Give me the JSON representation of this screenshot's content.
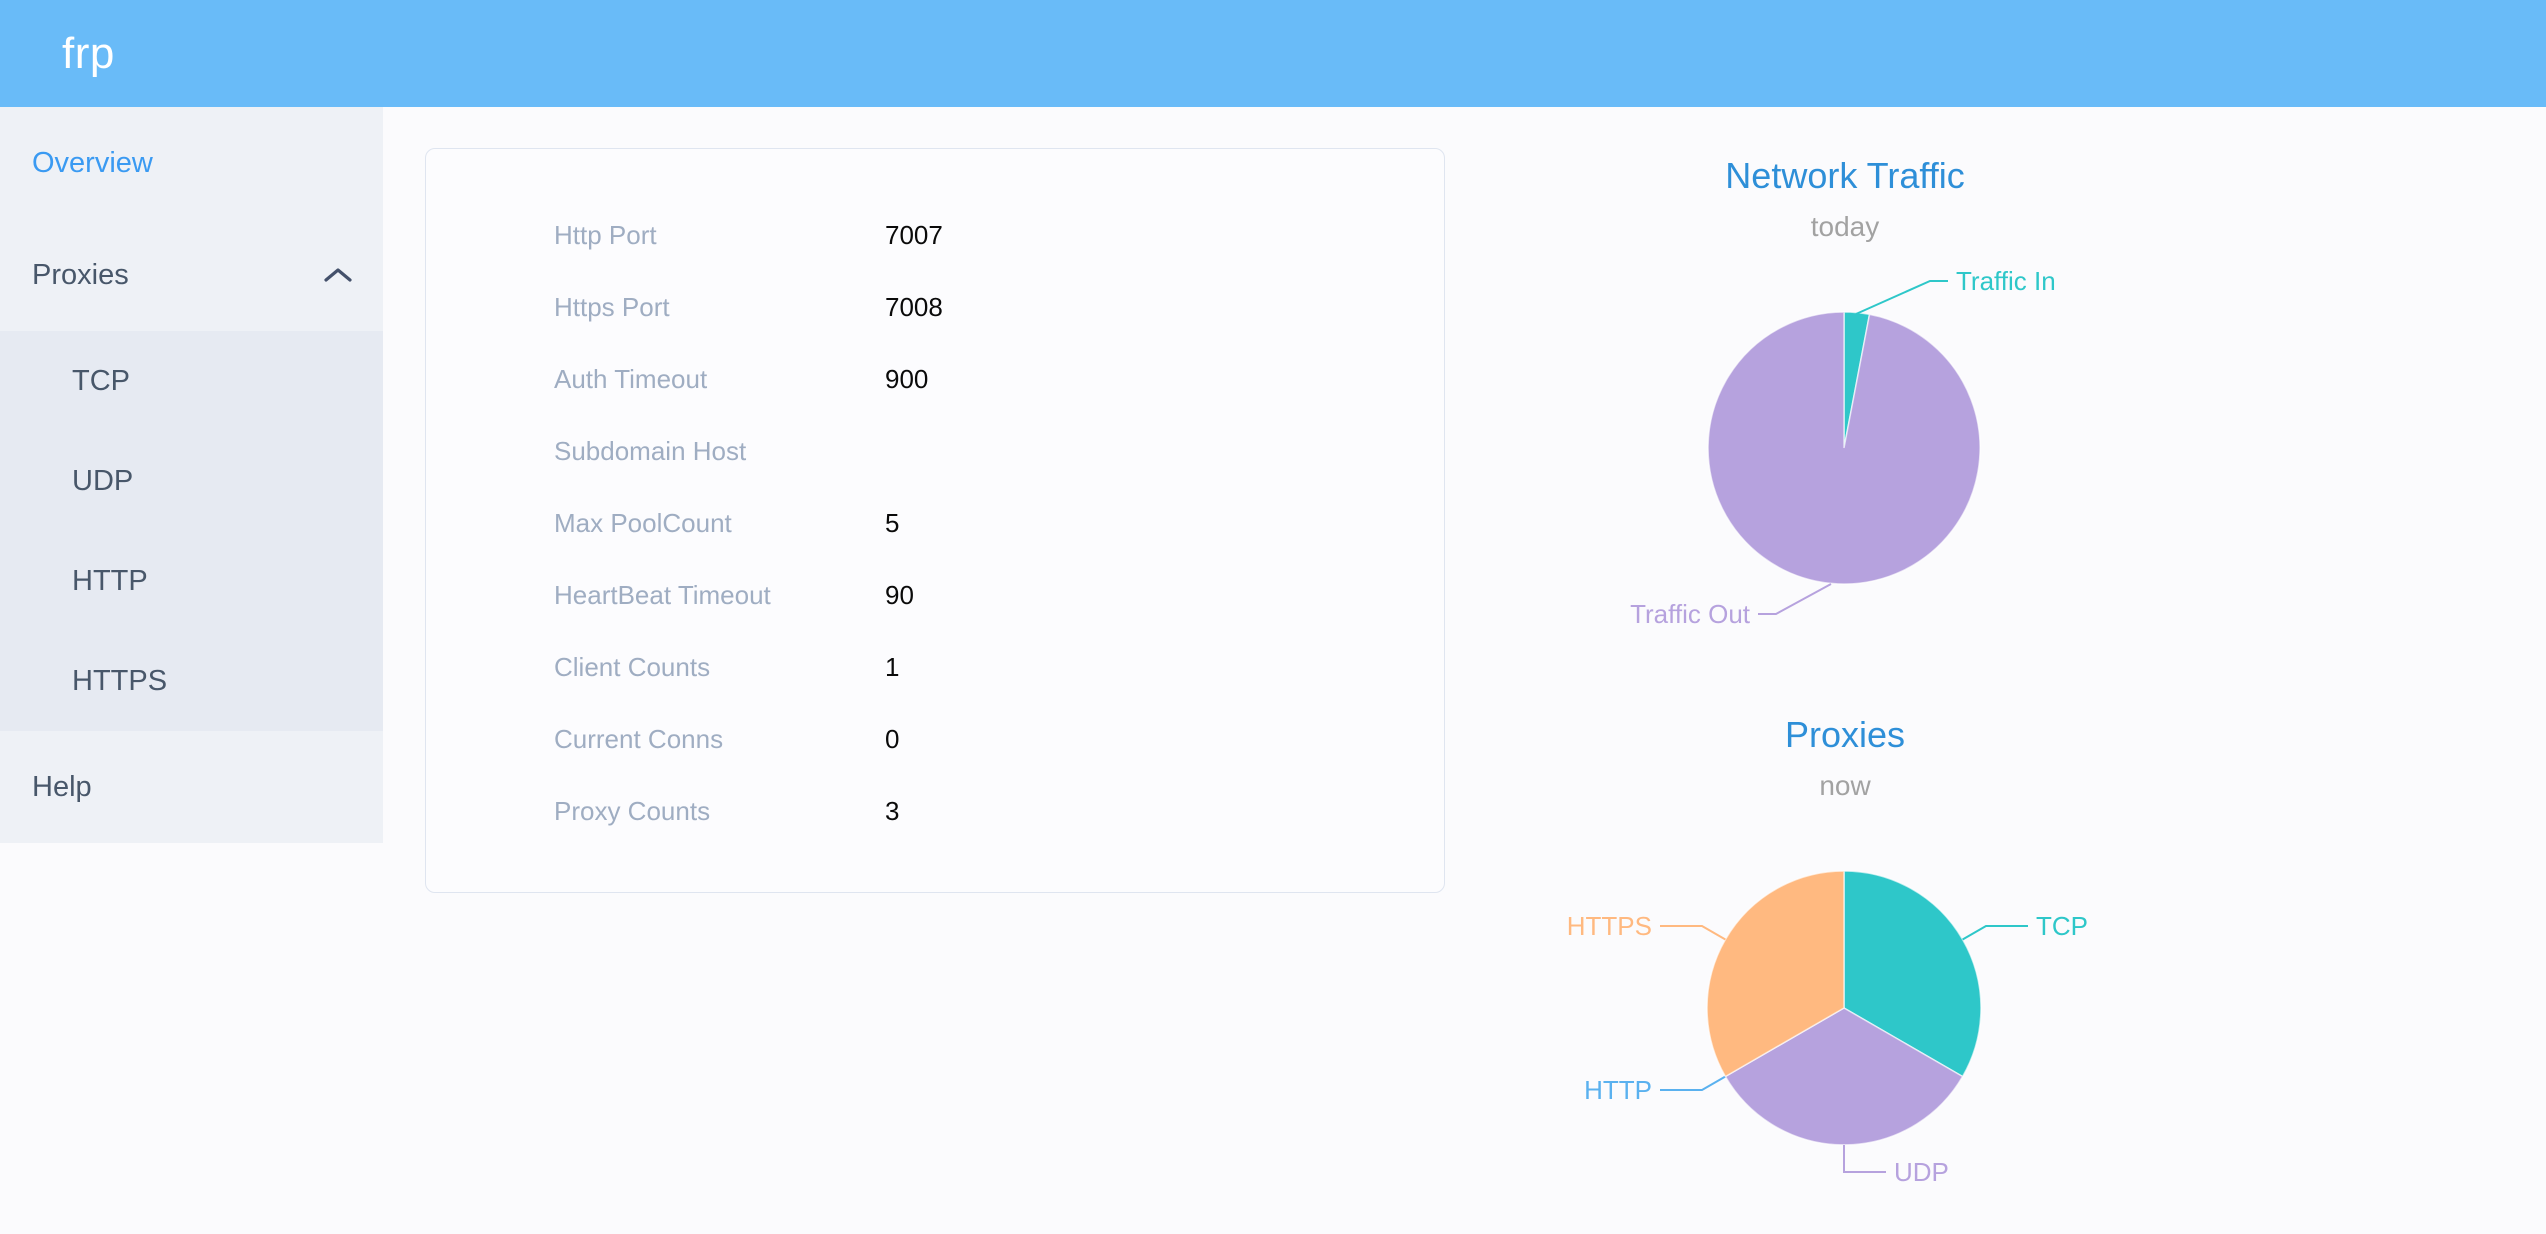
{
  "header": {
    "logo": "frp"
  },
  "sidebar": {
    "items": [
      {
        "label": "Overview",
        "active": true
      },
      {
        "label": "Proxies",
        "expanded": true,
        "children": [
          {
            "label": "TCP"
          },
          {
            "label": "UDP"
          },
          {
            "label": "HTTP"
          },
          {
            "label": "HTTPS"
          }
        ]
      },
      {
        "label": "Help"
      }
    ]
  },
  "overview": {
    "rows": [
      {
        "label": "Http Port",
        "value": "7007"
      },
      {
        "label": "Https Port",
        "value": "7008"
      },
      {
        "label": "Auth Timeout",
        "value": "900"
      },
      {
        "label": "Subdomain Host",
        "value": ""
      },
      {
        "label": "Max PoolCount",
        "value": "5"
      },
      {
        "label": "HeartBeat Timeout",
        "value": "90"
      },
      {
        "label": "Client Counts",
        "value": "1"
      },
      {
        "label": "Current Conns",
        "value": "0"
      },
      {
        "label": "Proxy Counts",
        "value": "3"
      }
    ]
  },
  "chart_data": [
    {
      "type": "pie",
      "title": "Network Traffic",
      "subtitle": "today",
      "legend_position": "callout-labels",
      "series": [
        {
          "name": "Traffic In",
          "value": 3,
          "color": "#2ec7c9"
        },
        {
          "name": "Traffic Out",
          "value": 97,
          "color": "#b6a2de"
        }
      ]
    },
    {
      "type": "pie",
      "title": "Proxies",
      "subtitle": "now",
      "legend_position": "callout-labels",
      "series": [
        {
          "name": "TCP",
          "value": 1,
          "color": "#2ec7c9"
        },
        {
          "name": "UDP",
          "value": 1,
          "color": "#b6a2de"
        },
        {
          "name": "HTTP",
          "value": 0,
          "color": "#5ab1ef"
        },
        {
          "name": "HTTPS",
          "value": 1,
          "color": "#ffb980"
        }
      ]
    }
  ],
  "colors": {
    "header_bg": "#69bbf8",
    "sidebar_bg": "#eef1f6",
    "submenu_bg": "#e6eaf2",
    "sidebar_text": "#48576a",
    "active_item_text": "#3a9af2",
    "chart_title_blue": "#2e8fd8",
    "chart_subtitle_gray": "#a2a2a2",
    "config_label_gray": "#9fadc2"
  }
}
